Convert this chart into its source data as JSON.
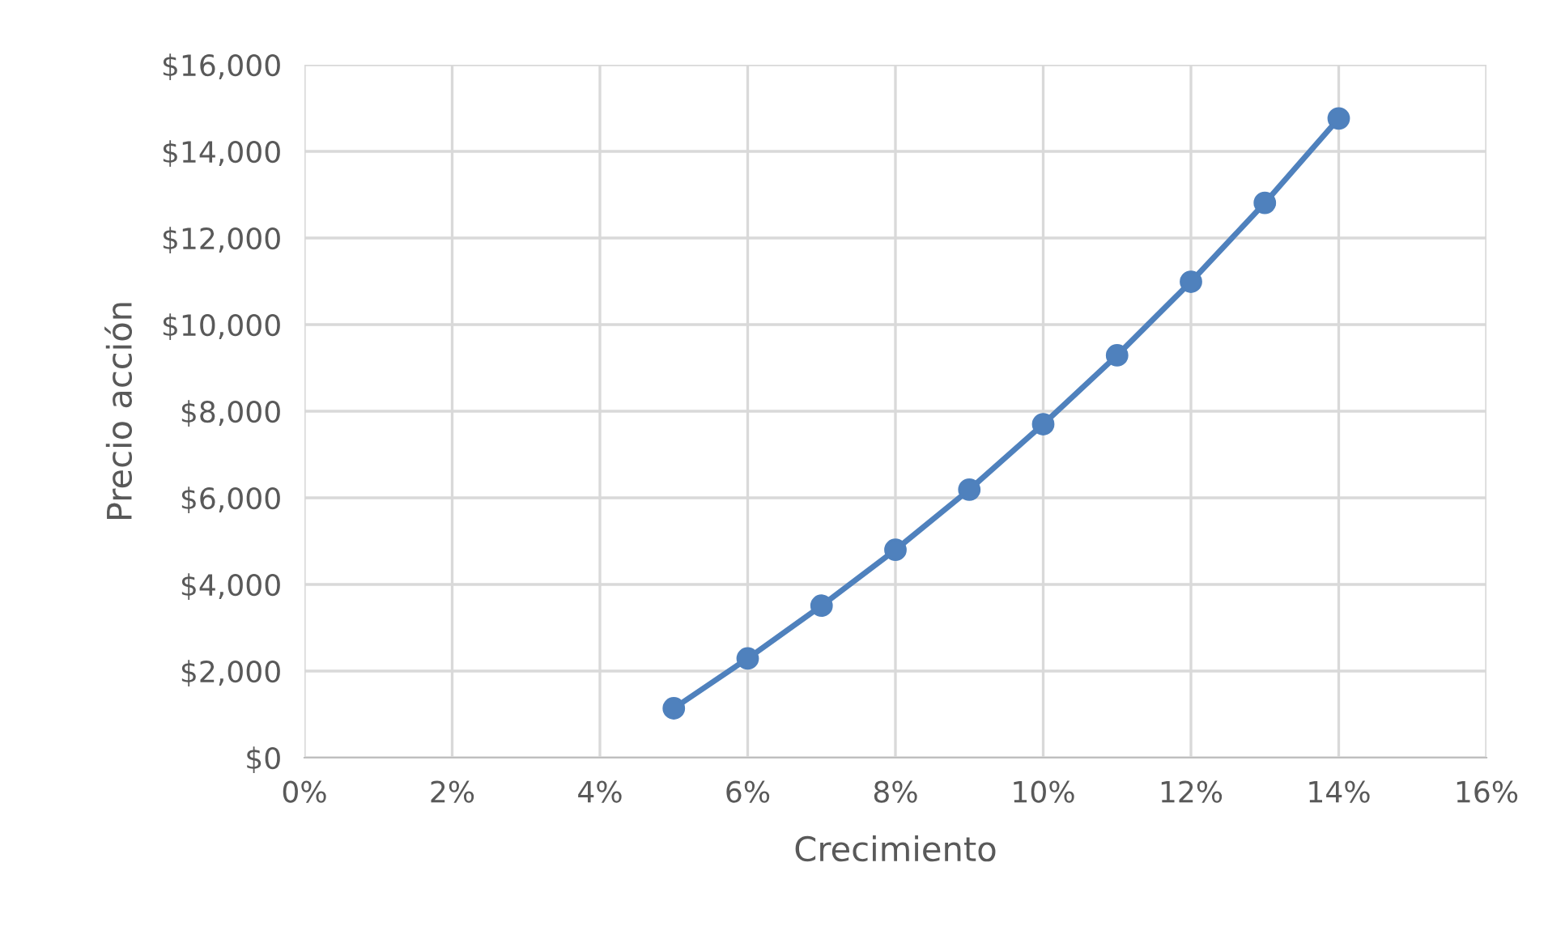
{
  "chart_data": {
    "type": "line",
    "xlabel": "Crecimiento",
    "ylabel": "Precio acción",
    "x": [
      5,
      6,
      7,
      8,
      9,
      10,
      11,
      12,
      13,
      14
    ],
    "series": [
      {
        "color": "#4f81bd",
        "values": [
          1140,
          2290,
          3510,
          4800,
          6190,
          7700,
          9290,
          10990,
          12810,
          14760
        ]
      }
    ],
    "xlim": [
      0,
      16
    ],
    "xticks": [
      {
        "value": 0,
        "label": "0%"
      },
      {
        "value": 2,
        "label": "2%"
      },
      {
        "value": 4,
        "label": "4%"
      },
      {
        "value": 6,
        "label": "6%"
      },
      {
        "value": 8,
        "label": "8%"
      },
      {
        "value": 10,
        "label": "10%"
      },
      {
        "value": 12,
        "label": "12%"
      },
      {
        "value": 14,
        "label": "14%"
      },
      {
        "value": 16,
        "label": "16%"
      }
    ],
    "ylim": [
      0,
      16000
    ],
    "yticks": [
      {
        "value": 0,
        "label": "$0"
      },
      {
        "value": 2000,
        "label": "$2,000"
      },
      {
        "value": 4000,
        "label": "$4,000"
      },
      {
        "value": 6000,
        "label": "$6,000"
      },
      {
        "value": 8000,
        "label": "$8,000"
      },
      {
        "value": 10000,
        "label": "$10,000"
      },
      {
        "value": 12000,
        "label": "$12,000"
      },
      {
        "value": 14000,
        "label": "$14,000"
      },
      {
        "value": 16000,
        "label": "$16,000"
      }
    ],
    "grid": true,
    "marker": "circle",
    "line_style": "solid",
    "legend": false
  }
}
